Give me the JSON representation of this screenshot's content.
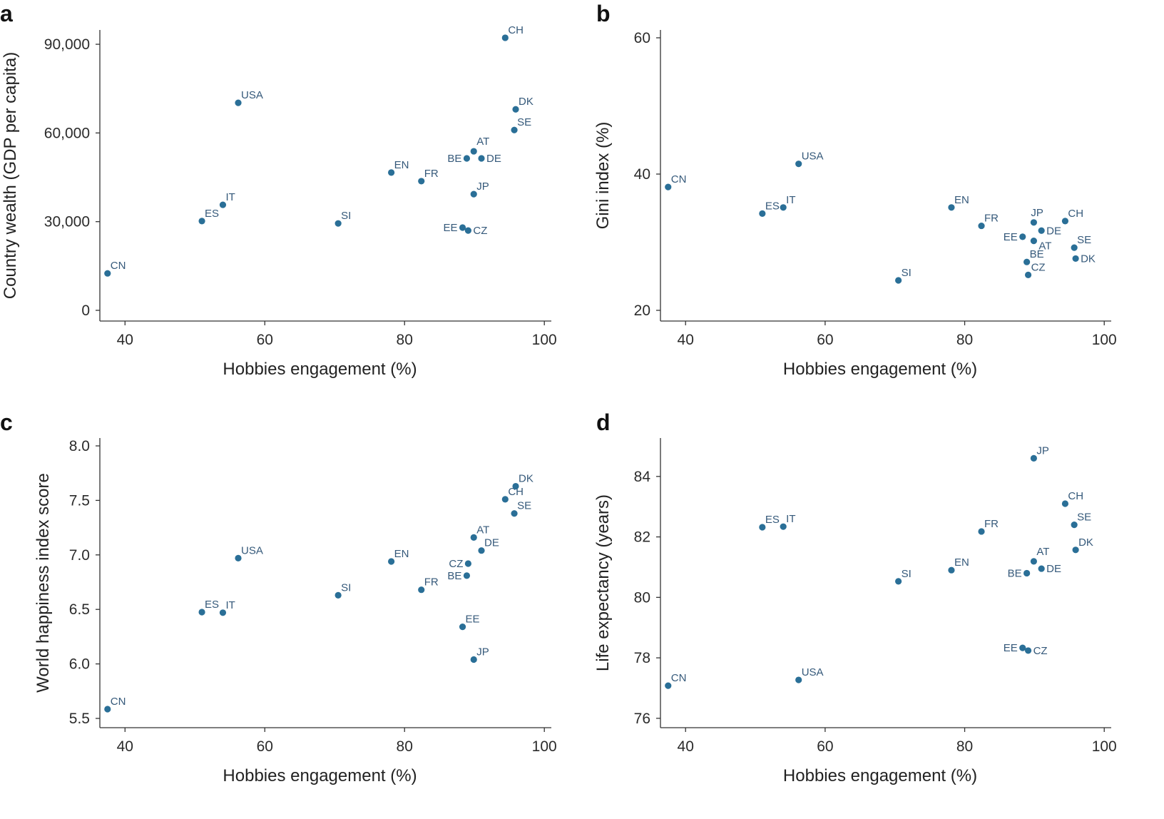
{
  "chart_data": [
    {
      "panel": "a",
      "type": "scatter",
      "xlabel": "Hobbies engagement (%)",
      "ylabel": "Country wealth (GDP per capita)",
      "xlim": [
        36.4,
        101.0
      ],
      "ylim": [
        -3620,
        94840
      ],
      "xticks": [
        40,
        60,
        80,
        100
      ],
      "xtick_labels": [
        "40",
        "60",
        "80",
        "100"
      ],
      "yticks": [
        0,
        30000,
        60000,
        90000
      ],
      "ytick_labels": [
        "0",
        "30,000",
        "60,000",
        "90,000"
      ],
      "points": [
        {
          "label": "CN",
          "x": 37.5,
          "y": 12500
        },
        {
          "label": "USA",
          "x": 56.2,
          "y": 70200
        },
        {
          "label": "IT",
          "x": 54.0,
          "y": 35700
        },
        {
          "label": "ES",
          "x": 51.0,
          "y": 30200
        },
        {
          "label": "SI",
          "x": 70.5,
          "y": 29400
        },
        {
          "label": "EN",
          "x": 78.1,
          "y": 46600
        },
        {
          "label": "FR",
          "x": 82.4,
          "y": 43700
        },
        {
          "label": "JP",
          "x": 89.9,
          "y": 39300
        },
        {
          "label": "BE",
          "x": 88.9,
          "y": 51400
        },
        {
          "label": "AT",
          "x": 89.9,
          "y": 53800
        },
        {
          "label": "DE",
          "x": 91.0,
          "y": 51400
        },
        {
          "label": "EE",
          "x": 88.3,
          "y": 28000
        },
        {
          "label": "CZ",
          "x": 89.1,
          "y": 27000
        },
        {
          "label": "DK",
          "x": 95.9,
          "y": 68000
        },
        {
          "label": "SE",
          "x": 95.7,
          "y": 61000
        },
        {
          "label": "CH",
          "x": 94.4,
          "y": 92200
        }
      ]
    },
    {
      "panel": "b",
      "type": "scatter",
      "xlabel": "Hobbies engagement (%)",
      "ylabel": "Gini index (%)",
      "xlim": [
        36.4,
        101.0
      ],
      "ylim": [
        18.43,
        61.15
      ],
      "xticks": [
        40,
        60,
        80,
        100
      ],
      "xtick_labels": [
        "40",
        "60",
        "80",
        "100"
      ],
      "yticks": [
        20,
        40,
        60
      ],
      "ytick_labels": [
        "20",
        "40",
        "60"
      ],
      "points": [
        {
          "label": "CN",
          "x": 37.5,
          "y": 38.1
        },
        {
          "label": "USA",
          "x": 56.2,
          "y": 41.5
        },
        {
          "label": "ES",
          "x": 51.0,
          "y": 34.2
        },
        {
          "label": "IT",
          "x": 54.0,
          "y": 35.1
        },
        {
          "label": "EN",
          "x": 78.1,
          "y": 35.1
        },
        {
          "label": "FR",
          "x": 82.4,
          "y": 32.4
        },
        {
          "label": "JP",
          "x": 89.9,
          "y": 32.9
        },
        {
          "label": "DE",
          "x": 91.0,
          "y": 31.7
        },
        {
          "label": "EE",
          "x": 88.3,
          "y": 30.8
        },
        {
          "label": "AT",
          "x": 89.9,
          "y": 30.2
        },
        {
          "label": "CH",
          "x": 94.4,
          "y": 33.1
        },
        {
          "label": "SE",
          "x": 95.7,
          "y": 29.2
        },
        {
          "label": "DK",
          "x": 95.9,
          "y": 27.6
        },
        {
          "label": "BE",
          "x": 88.9,
          "y": 27.1
        },
        {
          "label": "CZ",
          "x": 89.1,
          "y": 25.2
        },
        {
          "label": "SI",
          "x": 70.5,
          "y": 24.4
        }
      ]
    },
    {
      "panel": "c",
      "type": "scatter",
      "xlabel": "Hobbies engagement (%)",
      "ylabel": "World happiness index score",
      "xlim": [
        36.4,
        101.0
      ],
      "ylim": [
        5.415,
        8.072
      ],
      "xticks": [
        40,
        60,
        80,
        100
      ],
      "xtick_labels": [
        "40",
        "60",
        "80",
        "100"
      ],
      "yticks": [
        5.5,
        6.0,
        6.5,
        7.0,
        7.5,
        8.0
      ],
      "ytick_labels": [
        "5.5",
        "6.0",
        "6.5",
        "7.0",
        "7.5",
        "8.0"
      ],
      "points": [
        {
          "label": "CN",
          "x": 37.5,
          "y": 5.585
        },
        {
          "label": "ES",
          "x": 51.0,
          "y": 6.475
        },
        {
          "label": "IT",
          "x": 54.0,
          "y": 6.47
        },
        {
          "label": "USA",
          "x": 56.2,
          "y": 6.97
        },
        {
          "label": "SI",
          "x": 70.5,
          "y": 6.63
        },
        {
          "label": "EN",
          "x": 78.1,
          "y": 6.94
        },
        {
          "label": "FR",
          "x": 82.4,
          "y": 6.68
        },
        {
          "label": "EE",
          "x": 88.3,
          "y": 6.34
        },
        {
          "label": "JP",
          "x": 89.9,
          "y": 6.04
        },
        {
          "label": "BE",
          "x": 88.9,
          "y": 6.81
        },
        {
          "label": "CZ",
          "x": 89.1,
          "y": 6.92
        },
        {
          "label": "AT",
          "x": 89.9,
          "y": 7.16
        },
        {
          "label": "DE",
          "x": 91.0,
          "y": 7.04
        },
        {
          "label": "CH",
          "x": 94.4,
          "y": 7.51
        },
        {
          "label": "DK",
          "x": 95.9,
          "y": 7.63
        },
        {
          "label": "SE",
          "x": 95.7,
          "y": 7.38
        }
      ]
    },
    {
      "panel": "d",
      "type": "scatter",
      "xlabel": "Hobbies engagement (%)",
      "ylabel": "Life expectancy (years)",
      "xlim": [
        36.4,
        101.0
      ],
      "ylim": [
        75.69,
        85.27
      ],
      "xticks": [
        40,
        60,
        80,
        100
      ],
      "xtick_labels": [
        "40",
        "60",
        "80",
        "100"
      ],
      "yticks": [
        76,
        78,
        80,
        82,
        84
      ],
      "ytick_labels": [
        "76",
        "78",
        "80",
        "82",
        "84"
      ],
      "points": [
        {
          "label": "CN",
          "x": 37.5,
          "y": 77.08
        },
        {
          "label": "USA",
          "x": 56.2,
          "y": 77.27
        },
        {
          "label": "ES",
          "x": 51.0,
          "y": 82.32
        },
        {
          "label": "IT",
          "x": 54.0,
          "y": 82.34
        },
        {
          "label": "FR",
          "x": 82.4,
          "y": 82.18
        },
        {
          "label": "EN",
          "x": 78.1,
          "y": 80.9
        },
        {
          "label": "SI",
          "x": 70.5,
          "y": 80.53
        },
        {
          "label": "JP",
          "x": 89.9,
          "y": 84.6
        },
        {
          "label": "CH",
          "x": 94.4,
          "y": 83.1
        },
        {
          "label": "SE",
          "x": 95.7,
          "y": 82.4
        },
        {
          "label": "DK",
          "x": 95.9,
          "y": 81.57
        },
        {
          "label": "AT",
          "x": 89.9,
          "y": 81.19
        },
        {
          "label": "DE",
          "x": 91.0,
          "y": 80.95
        },
        {
          "label": "BE",
          "x": 88.9,
          "y": 80.8
        },
        {
          "label": "EE",
          "x": 88.3,
          "y": 78.33
        },
        {
          "label": "CZ",
          "x": 89.1,
          "y": 78.24
        }
      ]
    }
  ],
  "colors": {
    "point": "#2a6f97",
    "point_label": "#35597a",
    "axis": "#333333"
  }
}
